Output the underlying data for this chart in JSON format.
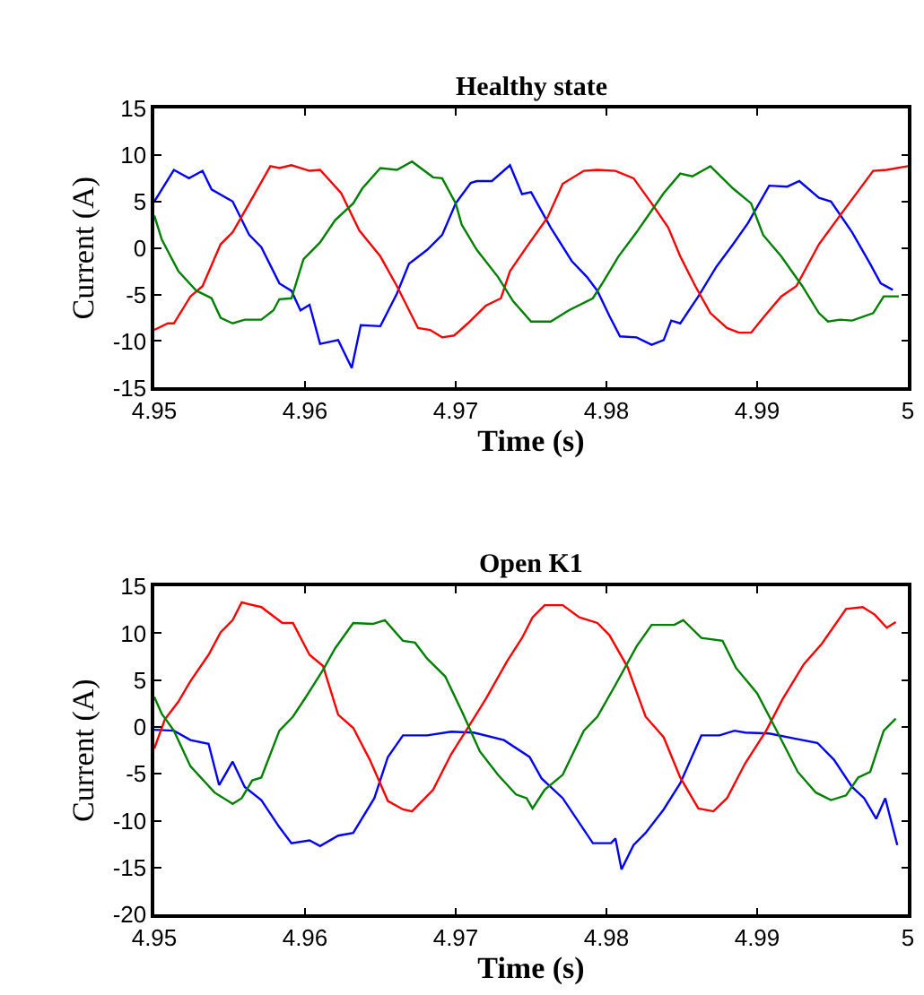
{
  "chart_data": [
    {
      "type": "line",
      "title": "Healthy state",
      "xlabel": "Time (s)",
      "ylabel": "Current (A)",
      "xlim": [
        4.95,
        5
      ],
      "ylim": [
        -15,
        15
      ],
      "xticks": [
        4.95,
        4.96,
        4.97,
        4.98,
        4.99,
        5
      ],
      "yticks": [
        -15,
        -10,
        -5,
        0,
        5,
        10,
        15
      ],
      "series": [
        {
          "color": "#0000ff",
          "x": [
            4.95,
            4.9513,
            4.9523,
            4.9532,
            4.9538,
            4.9552,
            4.9563,
            4.9571,
            4.9579,
            4.9583,
            4.9591,
            4.9597,
            4.9603,
            4.961,
            4.9622,
            4.9631,
            4.9637,
            4.965,
            4.9661,
            4.9669,
            4.9681,
            4.9691,
            4.97,
            4.971,
            4.9714,
            4.9724,
            4.9736,
            4.9744,
            4.975,
            4.9763,
            4.9777,
            4.9787,
            4.9794,
            4.9802,
            4.9809,
            4.982,
            4.983,
            4.9838,
            4.9843,
            4.9849,
            4.9861,
            4.9873,
            4.9884,
            4.9894,
            4.9908,
            4.992,
            4.9928,
            4.9941,
            4.9949,
            4.9963,
            4.9975,
            4.9982,
            4.999
          ],
          "values": [
            5,
            8.4,
            7.5,
            8.3,
            6.3,
            5,
            1.4,
            0.1,
            -2.5,
            -3.8,
            -4.6,
            -6.7,
            -6.1,
            -10.3,
            -9.9,
            -12.9,
            -8.3,
            -8.4,
            -4.9,
            -1.7,
            -0.2,
            1.4,
            4.8,
            7.0,
            7.2,
            7.2,
            8.9,
            5.8,
            6.0,
            2.2,
            -1.4,
            -3.1,
            -4.6,
            -7.3,
            -9.5,
            -9.6,
            -10.4,
            -9.9,
            -7.8,
            -8.1,
            -5.2,
            -2.0,
            0.4,
            2.7,
            6.7,
            6.6,
            7.2,
            5.4,
            5.0,
            1.7,
            -1.7,
            -3.8,
            -4.5
          ]
        },
        {
          "color": "#ff0000",
          "x": [
            4.95,
            4.9509,
            4.9513,
            4.9524,
            4.9532,
            4.9544,
            4.9552,
            4.9563,
            4.9577,
            4.9583,
            4.9591,
            4.9603,
            4.961,
            4.9624,
            4.9636,
            4.965,
            4.9661,
            4.9675,
            4.9683,
            4.9691,
            4.9699,
            4.9708,
            4.972,
            4.973,
            4.9736,
            4.9747,
            4.9761,
            4.9771,
            4.9785,
            4.9794,
            4.9806,
            4.9818,
            4.983,
            4.9841,
            4.9849,
            4.9859,
            4.9869,
            4.988,
            4.9888,
            4.9896,
            4.9904,
            4.9916,
            4.9926,
            4.9941,
            4.9955,
            4.9977,
            4.9986,
            5.0
          ],
          "values": [
            -8.8,
            -8.1,
            -8.1,
            -5.2,
            -4.1,
            0.4,
            1.7,
            4.8,
            8.8,
            8.6,
            8.9,
            8.3,
            8.4,
            5.9,
            1.9,
            -0.9,
            -4.1,
            -8.6,
            -8.8,
            -9.6,
            -9.4,
            -8.1,
            -6.2,
            -5.4,
            -2.5,
            0.1,
            3.3,
            6.9,
            8.3,
            8.4,
            8.3,
            7.5,
            4.8,
            2.2,
            -0.9,
            -4.1,
            -7.0,
            -8.6,
            -9.1,
            -9.1,
            -7.5,
            -5.2,
            -4.1,
            0.4,
            3.5,
            8.3,
            8.4,
            8.8
          ]
        },
        {
          "color": "#008000",
          "x": [
            4.95,
            4.9505,
            4.9516,
            4.9528,
            4.9538,
            4.9544,
            4.9552,
            4.956,
            4.9571,
            4.9579,
            4.9583,
            4.9591,
            4.9599,
            4.961,
            4.962,
            4.9632,
            4.9638,
            4.965,
            4.9661,
            4.9671,
            4.9685,
            4.9691,
            4.97,
            4.9704,
            4.9714,
            4.9728,
            4.9738,
            4.975,
            4.9763,
            4.9775,
            4.9791,
            4.9798,
            4.9808,
            4.982,
            4.9838,
            4.9849,
            4.9857,
            4.9869,
            4.9884,
            4.9896,
            4.9904,
            4.9916,
            4.993,
            4.9941,
            4.9947,
            4.9955,
            4.9963,
            4.9977,
            4.9984,
            4.9994
          ],
          "values": [
            3.5,
            0.9,
            -2.5,
            -4.6,
            -5.4,
            -7.5,
            -8.1,
            -7.7,
            -7.7,
            -6.7,
            -5.5,
            -5.4,
            -1.2,
            0.6,
            3.0,
            4.8,
            6.4,
            8.6,
            8.4,
            9.3,
            7.6,
            7.5,
            4.8,
            2.5,
            -0.2,
            -3.1,
            -5.7,
            -7.9,
            -7.9,
            -6.7,
            -5.4,
            -3.6,
            -0.9,
            1.7,
            5.9,
            8.0,
            7.7,
            8.8,
            6.4,
            4.8,
            1.4,
            -0.9,
            -4.1,
            -7.0,
            -7.9,
            -7.7,
            -7.8,
            -7.0,
            -5.2,
            -5.2
          ]
        }
      ]
    },
    {
      "type": "line",
      "title": "Open K1",
      "xlabel": "Time (s)",
      "ylabel": "Current (A)",
      "xlim": [
        4.95,
        5
      ],
      "ylim": [
        -20,
        15
      ],
      "xticks": [
        4.95,
        4.96,
        4.97,
        4.98,
        4.99,
        5
      ],
      "yticks": [
        -20,
        -15,
        -10,
        -5,
        0,
        5,
        10,
        15
      ],
      "series": [
        {
          "color": "#0000ff",
          "x": [
            4.95,
            4.9513,
            4.9524,
            4.9536,
            4.9543,
            4.9552,
            4.956,
            4.9571,
            4.9583,
            4.9591,
            4.9603,
            4.961,
            4.9622,
            4.9632,
            4.9646,
            4.9655,
            4.9665,
            4.9681,
            4.9697,
            4.9712,
            4.9732,
            4.9749,
            4.9757,
            4.9771,
            4.9791,
            4.9803,
            4.9806,
            4.981,
            4.9818,
            4.9826,
            4.9838,
            4.9849,
            4.9863,
            4.9875,
            4.9885,
            4.9892,
            4.9908,
            4.9924,
            4.994,
            4.9951,
            4.9963,
            4.9971,
            4.9979,
            4.9985,
            4.9993
          ],
          "values": [
            -0.3,
            -0.4,
            -1.4,
            -1.8,
            -6.2,
            -3.7,
            -6.4,
            -7.8,
            -10.7,
            -12.4,
            -12.1,
            -12.7,
            -11.6,
            -11.3,
            -7.6,
            -3.2,
            -0.9,
            -0.9,
            -0.5,
            -0.6,
            -1.4,
            -3.2,
            -5.5,
            -7.6,
            -12.4,
            -12.4,
            -11.9,
            -15.2,
            -12.6,
            -11.3,
            -8.8,
            -6.0,
            -0.9,
            -0.9,
            -0.4,
            -0.6,
            -0.7,
            -1.2,
            -1.7,
            -3.5,
            -6.4,
            -7.6,
            -9.8,
            -7.6,
            -12.6
          ]
        },
        {
          "color": "#ff0000",
          "x": [
            4.95,
            4.9507,
            4.9516,
            4.9524,
            4.9536,
            4.9544,
            4.9552,
            4.9558,
            4.9563,
            4.9571,
            4.9585,
            4.9592,
            4.9603,
            4.9612,
            4.9622,
            4.9632,
            4.9643,
            4.9655,
            4.9665,
            4.9671,
            4.9685,
            4.9697,
            4.9708,
            4.972,
            4.9734,
            4.9744,
            4.9751,
            4.9759,
            4.9771,
            4.9782,
            4.9794,
            4.9802,
            4.9814,
            4.9826,
            4.9838,
            4.9849,
            4.9861,
            4.9871,
            4.988,
            4.9892,
            4.9906,
            4.9917,
            4.9931,
            4.9943,
            4.9959,
            4.997,
            4.9978,
            4.9986,
            4.9992
          ],
          "values": [
            -2.3,
            0.8,
            2.7,
            4.9,
            7.7,
            10.1,
            11.4,
            13.3,
            13.1,
            12.8,
            11.1,
            11.1,
            7.7,
            6.5,
            1.3,
            -0.1,
            -3.5,
            -7.9,
            -8.8,
            -9.0,
            -6.7,
            -2.9,
            -0.1,
            3.0,
            7.0,
            9.5,
            11.7,
            13.0,
            13.0,
            11.7,
            11.1,
            9.8,
            6.4,
            1.1,
            -1.1,
            -5.4,
            -8.7,
            -9.0,
            -7.6,
            -3.9,
            -0.4,
            3.0,
            6.7,
            8.9,
            12.6,
            12.8,
            12.0,
            10.6,
            11.2
          ]
        },
        {
          "color": "#008000",
          "x": [
            4.95,
            4.9505,
            4.9513,
            4.9524,
            4.954,
            4.9552,
            4.9558,
            4.9565,
            4.9571,
            4.9583,
            4.9592,
            4.9601,
            4.9612,
            4.962,
            4.9632,
            4.9645,
            4.9653,
            4.9665,
            4.9673,
            4.9681,
            4.9693,
            4.9704,
            4.9716,
            4.9728,
            4.974,
            4.9747,
            4.9751,
            4.9759,
            4.9771,
            4.9785,
            4.9794,
            4.9806,
            4.982,
            4.983,
            4.9845,
            4.9851,
            4.9863,
            4.9877,
            4.9886,
            4.99,
            4.9912,
            4.9927,
            4.9939,
            4.9949,
            4.9959,
            4.9967,
            4.9975,
            4.9984,
            4.9992
          ],
          "values": [
            3.2,
            1.4,
            -0.4,
            -4.2,
            -7.0,
            -8.2,
            -7.6,
            -5.7,
            -5.4,
            -0.4,
            1.1,
            3.3,
            6.1,
            8.4,
            11.1,
            11.0,
            11.4,
            9.2,
            9.0,
            7.3,
            5.4,
            1.7,
            -2.6,
            -5.1,
            -7.2,
            -7.6,
            -8.7,
            -6.7,
            -5.1,
            -0.4,
            1.1,
            4.5,
            8.6,
            10.9,
            10.9,
            11.4,
            9.5,
            9.2,
            6.3,
            3.6,
            -0.1,
            -4.8,
            -7.0,
            -7.8,
            -7.3,
            -5.4,
            -4.8,
            -0.4,
            0.9
          ]
        }
      ]
    }
  ]
}
